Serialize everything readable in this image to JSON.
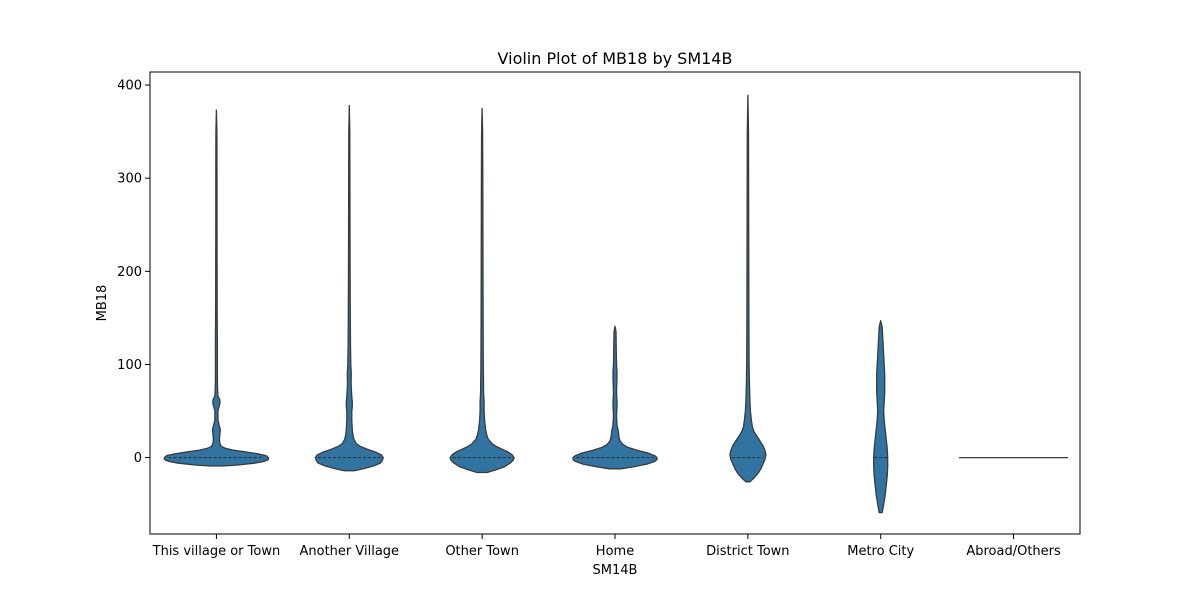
{
  "chart_data": {
    "type": "violin",
    "title": "Violin Plot of MB18 by SM14B",
    "xlabel": "SM14B",
    "ylabel": "MB18",
    "ylim": [
      -82,
      414
    ],
    "y_ticks": [
      0,
      100,
      200,
      300,
      400
    ],
    "grid": false,
    "legend": "none",
    "fill_color": "#3274a1",
    "edge_color": "#3a3a3a",
    "categories": [
      "This village or Town",
      "Another Village",
      "Other Town",
      "Home",
      "District Town",
      "Metro City",
      "Abroad/Others"
    ],
    "violins": [
      {
        "category": "This village or Town",
        "median": 0,
        "profile": [
          [
            -9,
            6
          ],
          [
            -8,
            20
          ],
          [
            -6,
            38
          ],
          [
            -4,
            48
          ],
          [
            -2,
            52
          ],
          [
            0,
            52
          ],
          [
            2,
            50
          ],
          [
            4,
            42
          ],
          [
            6,
            30
          ],
          [
            8,
            17
          ],
          [
            10,
            9
          ],
          [
            12,
            5
          ],
          [
            15,
            3.5
          ],
          [
            20,
            3
          ],
          [
            25,
            3.5
          ],
          [
            30,
            4
          ],
          [
            34,
            3
          ],
          [
            40,
            1.6
          ],
          [
            50,
            1.5
          ],
          [
            58,
            3.5
          ],
          [
            62,
            3.5
          ],
          [
            66,
            1.5
          ],
          [
            80,
            1
          ],
          [
            100,
            1
          ],
          [
            120,
            1
          ],
          [
            150,
            0.8
          ],
          [
            200,
            0.7
          ],
          [
            250,
            0.6
          ],
          [
            300,
            0.6
          ],
          [
            350,
            0.5
          ],
          [
            373,
            0
          ]
        ]
      },
      {
        "category": "Another Village",
        "median": 0,
        "profile": [
          [
            -14,
            5
          ],
          [
            -12,
            14
          ],
          [
            -9,
            24
          ],
          [
            -6,
            31
          ],
          [
            -3,
            33
          ],
          [
            0,
            34
          ],
          [
            3,
            32
          ],
          [
            6,
            26
          ],
          [
            9,
            18
          ],
          [
            12,
            11
          ],
          [
            15,
            7
          ],
          [
            20,
            4.5
          ],
          [
            25,
            3.5
          ],
          [
            30,
            3
          ],
          [
            40,
            2.5
          ],
          [
            50,
            2.5
          ],
          [
            55,
            3
          ],
          [
            60,
            3
          ],
          [
            65,
            2.5
          ],
          [
            80,
            1.8
          ],
          [
            90,
            2
          ],
          [
            100,
            1.5
          ],
          [
            120,
            1.2
          ],
          [
            150,
            1
          ],
          [
            200,
            0.8
          ],
          [
            250,
            0.7
          ],
          [
            300,
            0.6
          ],
          [
            350,
            0.5
          ],
          [
            378,
            0
          ]
        ]
      },
      {
        "category": "Other Town",
        "median": 0,
        "profile": [
          [
            -16,
            5
          ],
          [
            -13,
            14
          ],
          [
            -10,
            22
          ],
          [
            -6,
            28
          ],
          [
            -3,
            31
          ],
          [
            0,
            32
          ],
          [
            3,
            30
          ],
          [
            6,
            26
          ],
          [
            9,
            20
          ],
          [
            12,
            14
          ],
          [
            15,
            10
          ],
          [
            20,
            6
          ],
          [
            25,
            4.5
          ],
          [
            30,
            3.5
          ],
          [
            40,
            2.5
          ],
          [
            50,
            2
          ],
          [
            60,
            2
          ],
          [
            70,
            1.5
          ],
          [
            100,
            1.2
          ],
          [
            150,
            1
          ],
          [
            200,
            0.9
          ],
          [
            250,
            0.8
          ],
          [
            300,
            0.7
          ],
          [
            350,
            0.5
          ],
          [
            375,
            0
          ]
        ]
      },
      {
        "category": "Home",
        "median": 0,
        "profile": [
          [
            -12,
            6
          ],
          [
            -10,
            18
          ],
          [
            -7,
            32
          ],
          [
            -4,
            40
          ],
          [
            -2,
            42
          ],
          [
            0,
            42
          ],
          [
            2,
            40
          ],
          [
            5,
            33
          ],
          [
            8,
            22
          ],
          [
            11,
            13
          ],
          [
            14,
            8
          ],
          [
            18,
            5
          ],
          [
            22,
            4
          ],
          [
            26,
            3.5
          ],
          [
            30,
            3
          ],
          [
            35,
            2
          ],
          [
            45,
            1.5
          ],
          [
            55,
            2
          ],
          [
            60,
            2
          ],
          [
            70,
            1.5
          ],
          [
            85,
            2
          ],
          [
            92,
            2
          ],
          [
            100,
            1.5
          ],
          [
            120,
            1.2
          ],
          [
            135,
            1
          ],
          [
            141,
            0
          ]
        ]
      },
      {
        "category": "District Town",
        "median": 0,
        "profile": [
          [
            -26,
            2
          ],
          [
            -22,
            6
          ],
          [
            -17,
            10
          ],
          [
            -12,
            13
          ],
          [
            -7,
            15
          ],
          [
            -2,
            17
          ],
          [
            3,
            18
          ],
          [
            8,
            17
          ],
          [
            13,
            15
          ],
          [
            18,
            12
          ],
          [
            23,
            9
          ],
          [
            28,
            6
          ],
          [
            33,
            4.5
          ],
          [
            40,
            3.5
          ],
          [
            50,
            2.5
          ],
          [
            60,
            2
          ],
          [
            80,
            1.5
          ],
          [
            100,
            1.2
          ],
          [
            150,
            1
          ],
          [
            200,
            0.9
          ],
          [
            250,
            0.8
          ],
          [
            300,
            0.7
          ],
          [
            350,
            0.6
          ],
          [
            389,
            0
          ]
        ]
      },
      {
        "category": "Metro City",
        "median": 0,
        "profile": [
          [
            -59,
            1.5
          ],
          [
            -50,
            3
          ],
          [
            -40,
            4.5
          ],
          [
            -30,
            5.5
          ],
          [
            -20,
            6.5
          ],
          [
            -10,
            7
          ],
          [
            0,
            7
          ],
          [
            10,
            6.5
          ],
          [
            20,
            5.5
          ],
          [
            30,
            4.5
          ],
          [
            40,
            3.5
          ],
          [
            50,
            3
          ],
          [
            60,
            3.5
          ],
          [
            70,
            4
          ],
          [
            80,
            4
          ],
          [
            90,
            4
          ],
          [
            100,
            3.5
          ],
          [
            110,
            3
          ],
          [
            120,
            2.5
          ],
          [
            130,
            2
          ],
          [
            140,
            1.5
          ],
          [
            147,
            0
          ]
        ]
      },
      {
        "category": "Abroad/Others",
        "median": 0,
        "profile": [],
        "flat_value": 0
      }
    ]
  }
}
